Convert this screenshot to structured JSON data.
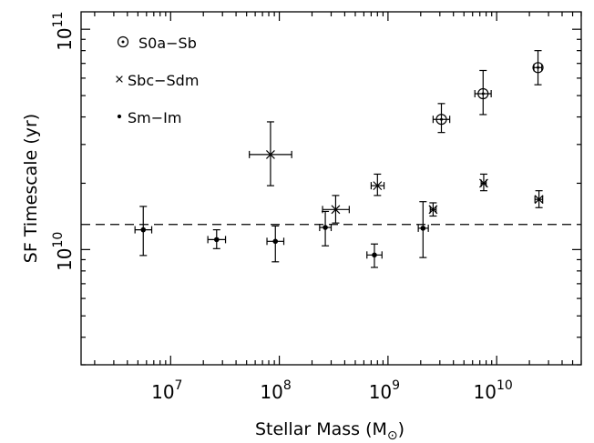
{
  "chart_data": {
    "type": "scatter",
    "xlabel": "Stellar Mass (M",
    "xlabel_sub": "⊙",
    "xlabel_close": ")",
    "ylabel": "SF Timescale (yr)",
    "x_scale": "log",
    "y_scale": "log",
    "xlim": [
      1500000,
      60000000000
    ],
    "ylim": [
      3000000000,
      120000000000
    ],
    "x_ticks": [
      {
        "value": 10000000,
        "base": "10",
        "exp": "7"
      },
      {
        "value": 100000000,
        "base": "10",
        "exp": "8"
      },
      {
        "value": 1000000000,
        "base": "10",
        "exp": "9"
      },
      {
        "value": 10000000000,
        "base": "10",
        "exp": "10"
      }
    ],
    "y_ticks": [
      {
        "value": 10000000000,
        "base": "10",
        "exp": "10"
      },
      {
        "value": 100000000000,
        "base": "10",
        "exp": "11"
      }
    ],
    "reference_line": {
      "y": 13000000000,
      "style": "dashed"
    },
    "legend": {
      "placement": "top-left",
      "entries": [
        {
          "label": "S0a−Sb",
          "marker": "circle-dot"
        },
        {
          "label": "Sbc−Sdm",
          "marker": "cross"
        },
        {
          "label": "Sm−Im",
          "marker": "dot"
        }
      ]
    },
    "series": [
      {
        "name": "S0a−Sb",
        "marker": "circle-dot",
        "points": [
          {
            "x": 3100000000,
            "y": 39000000000,
            "xerr": [
              2600000000,
              3700000000
            ],
            "yerr": [
              34000000000,
              46000000000
            ]
          },
          {
            "x": 7500000000,
            "y": 51000000000,
            "xerr": [
              6300000000,
              8900000000
            ],
            "yerr": [
              41000000000,
              65000000000
            ]
          },
          {
            "x": 24000000000,
            "y": 67000000000,
            "xerr": [
              22000000000,
              26000000000
            ],
            "yerr": [
              56000000000,
              80000000000
            ]
          }
        ]
      },
      {
        "name": "Sbc−Sdm",
        "marker": "cross",
        "points": [
          {
            "x": 83000000,
            "y": 27000000000,
            "xerr": [
              53000000,
              130000000
            ],
            "yerr": [
              19500000000,
              38000000000
            ]
          },
          {
            "x": 330000000,
            "y": 15200000000,
            "xerr": [
              250000000,
              440000000
            ],
            "yerr": [
              13200000000,
              17600000000
            ]
          },
          {
            "x": 800000000,
            "y": 19500000000,
            "xerr": [
              700000000,
              920000000
            ],
            "yerr": [
              17600000000,
              22000000000
            ]
          },
          {
            "x": 2600000000,
            "y": 15200000000,
            "xerr": [
              2450000000,
              2770000000
            ],
            "yerr": [
              14200000000,
              16300000000
            ]
          },
          {
            "x": 7600000000,
            "y": 20000000000,
            "xerr": [
              7200000000,
              8000000000
            ],
            "yerr": [
              18500000000,
              22000000000
            ]
          },
          {
            "x": 24500000000,
            "y": 16900000000,
            "xerr": [
              22500000000,
              26500000000
            ],
            "yerr": [
              15500000000,
              18500000000
            ]
          }
        ]
      },
      {
        "name": "Sm−Im",
        "marker": "dot",
        "points": [
          {
            "x": 5600000,
            "y": 12300000000,
            "xerr": [
              4700000,
              6700000
            ],
            "yerr": [
              9400000000,
              15700000000
            ]
          },
          {
            "x": 26500000,
            "y": 11100000000,
            "xerr": [
              22000000,
              32000000
            ],
            "yerr": [
              10100000000,
              12300000000
            ]
          },
          {
            "x": 92000000,
            "y": 10900000000,
            "xerr": [
              77000000,
              110000000
            ],
            "yerr": [
              8800000000,
              12800000000
            ]
          },
          {
            "x": 265000000,
            "y": 12600000000,
            "xerr": [
              235000000,
              300000000
            ],
            "yerr": [
              10400000000,
              14900000000
            ]
          },
          {
            "x": 750000000,
            "y": 9450000000,
            "xerr": [
              640000000,
              880000000
            ],
            "yerr": [
              8300000000,
              10600000000
            ]
          },
          {
            "x": 2100000000,
            "y": 12500000000,
            "xerr": [
              1900000000,
              2350000000
            ],
            "yerr": [
              9200000000,
              16500000000
            ]
          }
        ]
      }
    ]
  }
}
